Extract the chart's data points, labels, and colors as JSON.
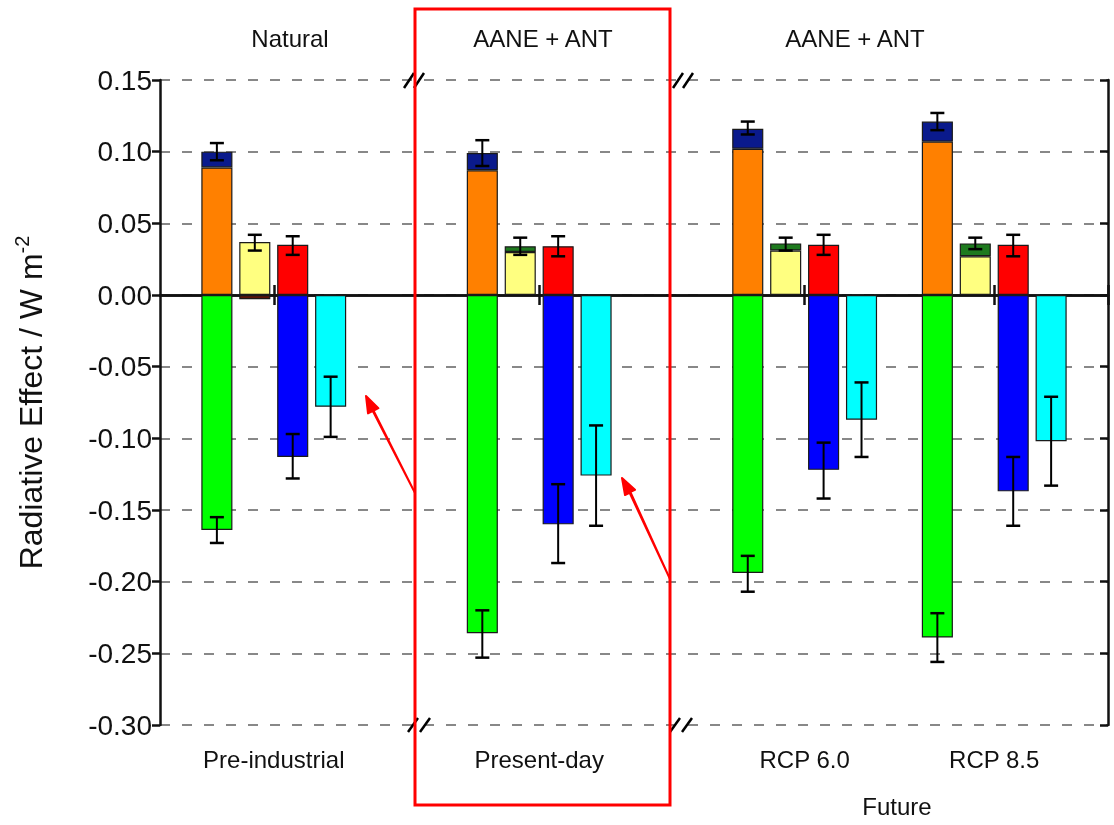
{
  "chart_data": {
    "type": "bar",
    "stacked": true,
    "ylabel": "Radiative Effect / W m$^{-2}$",
    "annotations": [
      "Natural",
      "AANE + ANT",
      "AANE + ANT",
      "Future"
    ],
    "categories": [
      null,
      null,
      null,
      "Pre-industrial",
      null,
      null,
      null,
      null,
      null,
      null,
      "Present-day",
      null,
      null,
      null,
      null,
      null,
      null,
      "RCP 6.0",
      null,
      null,
      null,
      null,
      "RCP 8.5",
      null,
      null
    ],
    "ylim": [
      -0.3,
      0.15
    ],
    "yticks": [
      {
        "value": -0.3,
        "label": "-0.30"
      },
      {
        "value": -0.25,
        "label": "-0.25"
      },
      {
        "value": -0.2,
        "label": "-0.20"
      },
      {
        "value": -0.15,
        "label": "-0.15"
      },
      {
        "value": -0.1,
        "label": "-0.10"
      },
      {
        "value": -0.05,
        "label": "-0.05"
      },
      {
        "value": 0,
        "label": "0.00"
      },
      {
        "value": 0.05,
        "label": "0.05"
      },
      {
        "value": 0.1,
        "label": "0.10"
      },
      {
        "value": 0.15,
        "label": "0.15"
      }
    ],
    "grid": "y",
    "series": [
      {
        "color": "#00ff00",
        "values": [
          null,
          -0.164,
          null,
          null,
          null,
          null,
          null,
          null,
          -0.236,
          null,
          null,
          null,
          null,
          null,
          null,
          -0.194,
          null,
          null,
          null,
          null,
          -0.239,
          null,
          null,
          null,
          null
        ],
        "errors": [
          null,
          [
            -0.173,
            -0.155
          ],
          null,
          null,
          null,
          null,
          null,
          null,
          [
            -0.253,
            -0.22
          ],
          null,
          null,
          null,
          null,
          null,
          null,
          [
            -0.207,
            -0.182
          ],
          null,
          null,
          null,
          null,
          [
            -0.256,
            -0.222
          ],
          null,
          null,
          null,
          null
        ]
      },
      {
        "color": "#ff8000",
        "values": [
          null,
          0.089,
          null,
          null,
          null,
          null,
          null,
          null,
          0.087,
          null,
          null,
          null,
          null,
          null,
          null,
          0.102,
          null,
          null,
          null,
          null,
          0.107,
          null,
          null,
          null,
          null
        ]
      },
      {
        "color": "#0a1a8c",
        "values": [
          null,
          0.011,
          null,
          null,
          null,
          null,
          null,
          null,
          0.012,
          null,
          null,
          null,
          null,
          null,
          null,
          0.014,
          null,
          null,
          null,
          null,
          0.014,
          null,
          null,
          null,
          null
        ],
        "errors": [
          null,
          [
            0.094,
            0.106
          ],
          null,
          null,
          null,
          null,
          null,
          null,
          [
            0.09,
            0.108
          ],
          null,
          null,
          null,
          null,
          null,
          null,
          [
            0.112,
            0.121
          ],
          null,
          null,
          null,
          null,
          [
            0.115,
            0.127
          ],
          null,
          null,
          null,
          null
        ]
      },
      {
        "color": "#5a1408",
        "values": [
          null,
          null,
          -0.003,
          null,
          null,
          null,
          null,
          null,
          null,
          null,
          null,
          null,
          null,
          null,
          null,
          null,
          null,
          null,
          null,
          null,
          null,
          null,
          null,
          null,
          null
        ]
      },
      {
        "color": "#ffff80",
        "values": [
          null,
          null,
          0.037,
          null,
          null,
          null,
          null,
          null,
          null,
          0.03,
          null,
          null,
          null,
          null,
          null,
          null,
          0.031,
          null,
          null,
          null,
          null,
          0.027,
          null,
          null,
          null
        ],
        "errors": [
          null,
          null,
          [
            0.031,
            0.042
          ],
          null,
          null,
          null,
          null,
          null,
          null,
          null,
          null,
          null,
          null,
          null,
          null,
          null,
          null,
          null,
          null,
          null,
          null,
          null,
          null,
          null,
          null
        ]
      },
      {
        "color": "#1e7a1e",
        "values": [
          null,
          null,
          null,
          null,
          null,
          null,
          null,
          null,
          null,
          0.004,
          null,
          null,
          null,
          null,
          null,
          null,
          0.005,
          null,
          null,
          null,
          null,
          0.009,
          null,
          null,
          null
        ],
        "errors": [
          null,
          null,
          null,
          null,
          null,
          null,
          null,
          null,
          null,
          [
            0.028,
            0.04
          ],
          null,
          null,
          null,
          null,
          null,
          null,
          [
            0.031,
            0.04
          ],
          null,
          null,
          null,
          null,
          [
            0.032,
            0.04
          ],
          null,
          null,
          null
        ]
      },
      {
        "color": "#ff0000",
        "values": [
          null,
          null,
          null,
          0.035,
          null,
          null,
          null,
          null,
          null,
          null,
          0.034,
          null,
          null,
          null,
          null,
          null,
          null,
          0.035,
          null,
          null,
          null,
          null,
          0.035,
          null,
          null
        ],
        "errors": [
          null,
          null,
          null,
          [
            0.028,
            0.041
          ],
          null,
          null,
          null,
          null,
          null,
          null,
          [
            0.027,
            0.041
          ],
          null,
          null,
          null,
          null,
          null,
          null,
          [
            0.028,
            0.042
          ],
          null,
          null,
          null,
          null,
          [
            0.027,
            0.042
          ],
          null,
          null
        ]
      },
      {
        "color": "#0000ff",
        "values": [
          null,
          null,
          null,
          -0.113,
          null,
          null,
          null,
          null,
          null,
          null,
          -0.16,
          null,
          null,
          null,
          null,
          null,
          null,
          -0.122,
          null,
          null,
          null,
          null,
          -0.137,
          null,
          null
        ],
        "errors": [
          null,
          null,
          null,
          [
            -0.128,
            -0.097
          ],
          null,
          null,
          null,
          null,
          null,
          null,
          [
            -0.187,
            -0.132
          ],
          null,
          null,
          null,
          null,
          null,
          null,
          [
            -0.142,
            -0.103
          ],
          null,
          null,
          null,
          null,
          [
            -0.161,
            -0.113
          ],
          null,
          null
        ]
      },
      {
        "color": "#00ffff",
        "values": [
          null,
          null,
          null,
          null,
          -0.078,
          null,
          null,
          null,
          null,
          null,
          null,
          -0.126,
          null,
          null,
          null,
          null,
          null,
          null,
          -0.087,
          null,
          null,
          null,
          null,
          -0.102,
          null
        ],
        "errors": [
          null,
          null,
          null,
          null,
          [
            -0.099,
            -0.057
          ],
          null,
          null,
          null,
          null,
          null,
          null,
          [
            -0.161,
            -0.091
          ],
          null,
          null,
          null,
          null,
          null,
          null,
          [
            -0.113,
            -0.061
          ],
          null,
          null,
          null,
          null,
          [
            -0.133,
            -0.071
          ],
          null
        ]
      }
    ]
  }
}
